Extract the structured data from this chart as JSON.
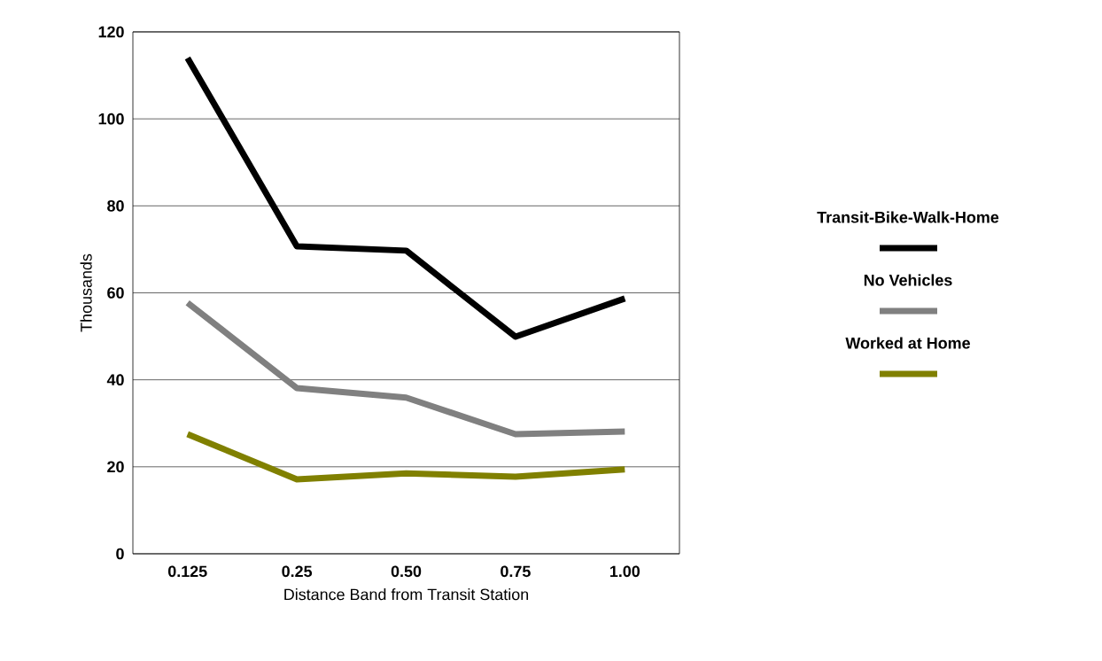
{
  "chart_data": {
    "type": "line",
    "xlabel": "Distance Band from Transit Station",
    "ylabel": "Thousands",
    "categories": [
      "0.125",
      "0.25",
      "0.50",
      "0.75",
      "1.00"
    ],
    "series": [
      {
        "name": "Transit-Bike-Walk-Home",
        "color": "#000000",
        "values": [
          114,
          70.7,
          69.7,
          49.9,
          58.7
        ]
      },
      {
        "name": "No Vehicles",
        "color": "#808080",
        "values": [
          57.7,
          38.1,
          35.9,
          27.5,
          28.1
        ]
      },
      {
        "name": "Worked at Home",
        "color": "#808000",
        "values": [
          27.5,
          17.1,
          18.5,
          17.7,
          19.4
        ]
      }
    ],
    "ylim": [
      0,
      120
    ],
    "yticks": [
      0,
      20,
      40,
      60,
      80,
      100,
      120
    ],
    "grid": "y",
    "legend": "right"
  }
}
